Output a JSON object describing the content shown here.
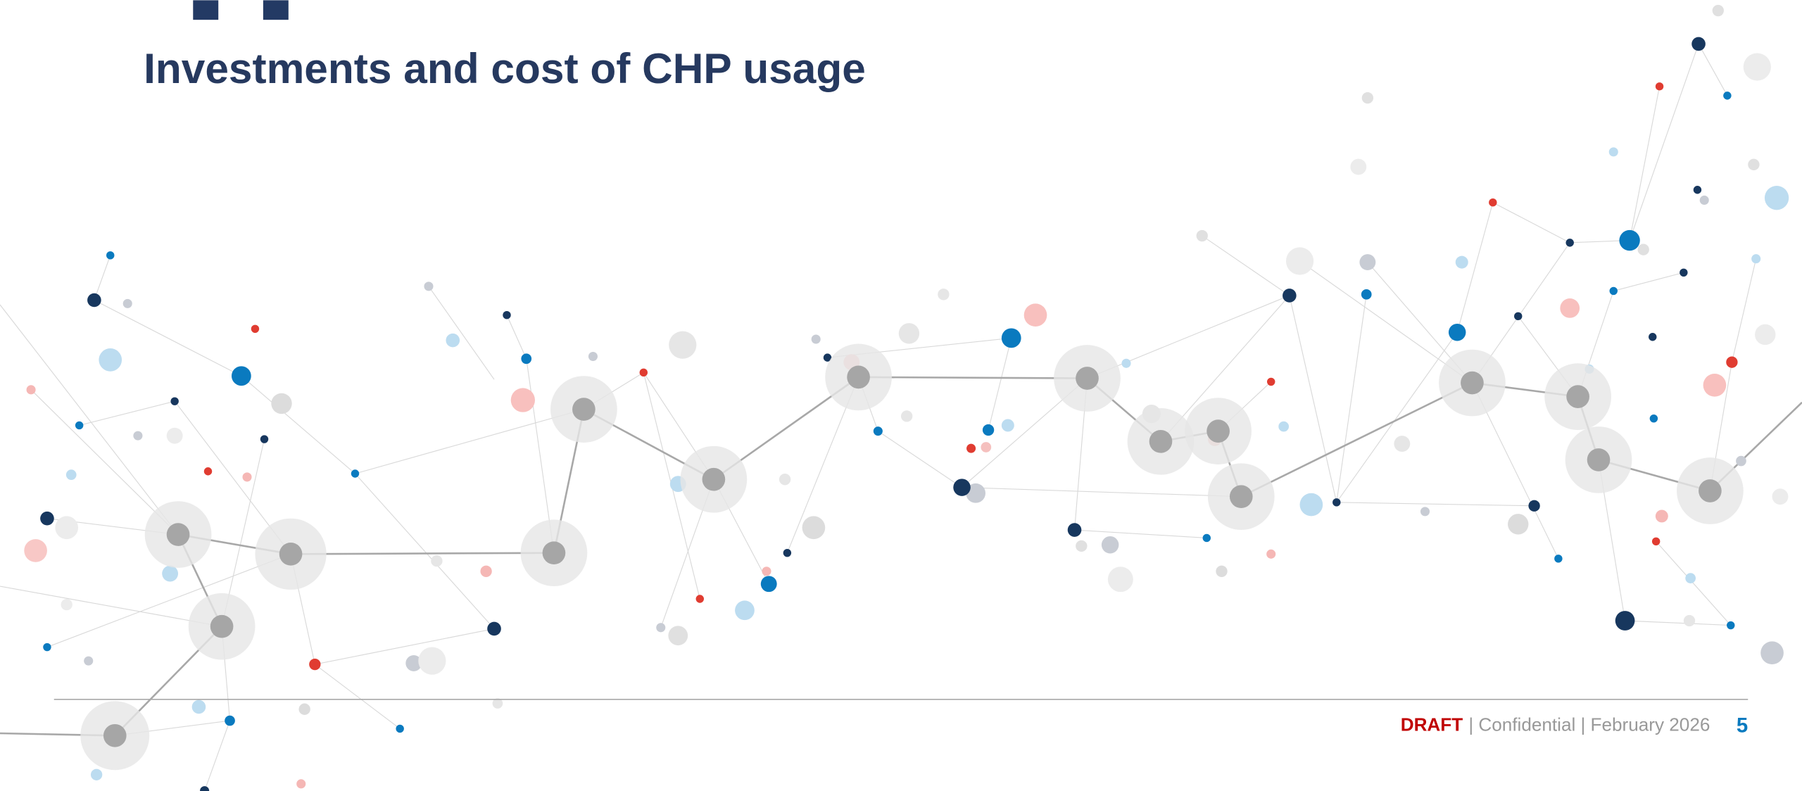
{
  "header": {
    "title": "Investments and cost of CHP usage"
  },
  "footer": {
    "draft": "DRAFT",
    "text": "| Confidential | February 2026",
    "page_number": "5"
  }
}
